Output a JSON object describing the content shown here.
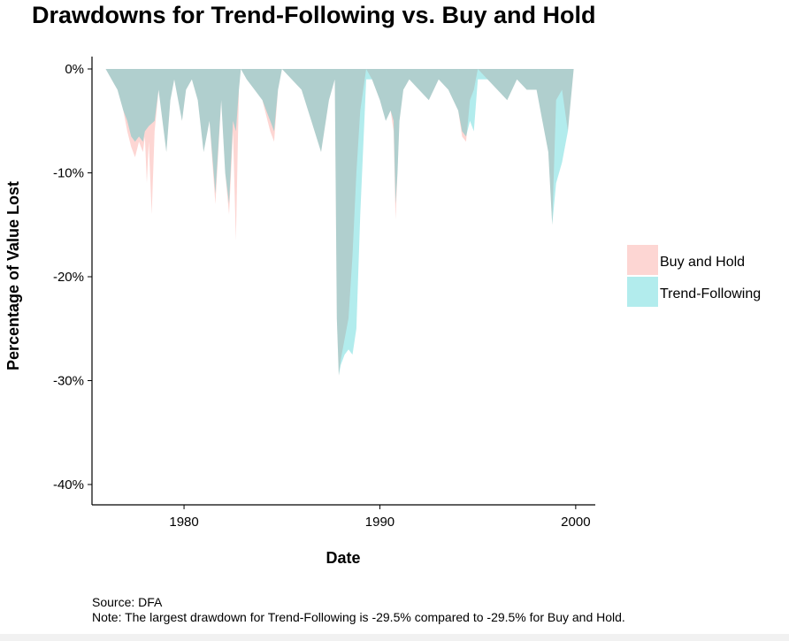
{
  "title": "Drawdowns for Trend-Following vs. Buy and Hold",
  "caption": {
    "source": "Source: DFA",
    "note": "Note: The largest drawdown for Trend-Following is -29.5% compared to -29.5% for Buy and Hold."
  },
  "chart_data": {
    "type": "area",
    "title": "Drawdowns for Trend-Following vs. Buy and Hold",
    "xlabel": "Date",
    "ylabel": "Percentage of Value Lost",
    "xlim": [
      1975.3,
      2001.0
    ],
    "ylim": [
      -42,
      1
    ],
    "x_ticks": [
      1980,
      1990,
      2000
    ],
    "x_tick_labels": [
      "1980",
      "1990",
      "2000"
    ],
    "y_ticks": [
      0,
      -10,
      -20,
      -30,
      -40
    ],
    "y_tick_labels": [
      "0%",
      "-10%",
      "-20%",
      "-30%",
      "-40%"
    ],
    "grid": false,
    "legend_position": "right",
    "colors": {
      "Buy and Hold": "#F8766D",
      "Trend-Following": "#00BFC4",
      "overlap": "#B3C9CA"
    },
    "series": [
      {
        "name": "Buy and Hold",
        "x": [
          1976.0,
          1976.3,
          1976.6,
          1976.9,
          1977.1,
          1977.3,
          1977.5,
          1977.7,
          1977.9,
          1978.0,
          1978.1,
          1978.2,
          1978.35,
          1978.5,
          1978.7,
          1978.9,
          1979.1,
          1979.3,
          1979.5,
          1979.7,
          1979.9,
          1980.1,
          1980.4,
          1980.7,
          1981.0,
          1981.3,
          1981.6,
          1981.9,
          1982.1,
          1982.3,
          1982.5,
          1982.65,
          1982.8,
          1982.9,
          1983.2,
          1983.6,
          1984.0,
          1984.4,
          1984.6,
          1984.8,
          1985.0,
          1985.5,
          1986.0,
          1986.5,
          1987.0,
          1987.4,
          1987.7,
          1987.8,
          1987.9,
          1988.0,
          1988.2,
          1988.4,
          1988.6,
          1988.8,
          1989.0,
          1989.3,
          1989.6,
          1990.0,
          1990.3,
          1990.55,
          1990.7,
          1990.8,
          1990.9,
          1991.0,
          1991.2,
          1991.5,
          1992.0,
          1992.5,
          1993.0,
          1993.5,
          1994.0,
          1994.2,
          1994.4,
          1994.6,
          1994.8,
          1995.0,
          1995.5,
          1996.0,
          1996.5,
          1997.0,
          1997.5,
          1998.0,
          1998.3,
          1998.6,
          1998.8,
          1999.0,
          1999.3,
          1999.6,
          1999.9
        ],
        "values": [
          0,
          -1,
          -2,
          -4,
          -6,
          -7.5,
          -8.5,
          -7,
          -8,
          -6.5,
          -11,
          -7,
          -14,
          -6,
          -2,
          -5,
          -8,
          -3,
          -1,
          -3,
          -5,
          -2,
          -1,
          -3,
          -8,
          -5,
          -13,
          -3,
          -10,
          -14,
          -6,
          -16.5,
          -2,
          0,
          -1,
          -2,
          -3,
          -6,
          -7,
          -2,
          0,
          -1,
          -2,
          -5,
          -8,
          -3,
          -1,
          -24,
          -29.5,
          -28,
          -26,
          -24,
          -18,
          -10,
          -4,
          0,
          -1,
          -3,
          -5,
          -4,
          -6,
          -14.5,
          -10,
          -5,
          -2,
          -1,
          -2,
          -3,
          -1,
          -2,
          -4,
          -6.5,
          -7,
          -3,
          -2,
          0,
          -1,
          -2,
          -3,
          -1,
          -2,
          -2,
          -5,
          -8,
          -15,
          -3,
          -2,
          -6,
          0
        ]
      },
      {
        "name": "Trend-Following",
        "x": [
          1976.0,
          1976.3,
          1976.6,
          1976.9,
          1977.1,
          1977.3,
          1977.5,
          1977.7,
          1977.9,
          1978.0,
          1978.2,
          1978.5,
          1978.7,
          1978.9,
          1979.1,
          1979.3,
          1979.5,
          1979.7,
          1979.9,
          1980.1,
          1980.4,
          1980.7,
          1981.0,
          1981.3,
          1981.6,
          1981.9,
          1982.1,
          1982.3,
          1982.5,
          1982.65,
          1982.8,
          1982.9,
          1983.2,
          1983.6,
          1984.0,
          1984.4,
          1984.6,
          1984.8,
          1985.0,
          1985.5,
          1986.0,
          1986.5,
          1987.0,
          1987.4,
          1987.7,
          1987.8,
          1987.9,
          1988.0,
          1988.2,
          1988.4,
          1988.6,
          1988.8,
          1989.0,
          1989.3,
          1989.6,
          1990.0,
          1990.3,
          1990.55,
          1990.7,
          1990.8,
          1990.9,
          1991.0,
          1991.2,
          1991.5,
          1992.0,
          1992.5,
          1993.0,
          1993.5,
          1994.0,
          1994.2,
          1994.4,
          1994.6,
          1994.8,
          1995.0,
          1995.5,
          1996.0,
          1996.5,
          1997.0,
          1997.5,
          1998.0,
          1998.3,
          1998.6,
          1998.8,
          1999.0,
          1999.3,
          1999.6,
          1999.9
        ],
        "values": [
          0,
          -1,
          -2,
          -4,
          -5,
          -6.5,
          -7,
          -6.5,
          -7,
          -6,
          -5.5,
          -5,
          -2,
          -5,
          -8,
          -3,
          -1,
          -3,
          -5,
          -2,
          -1,
          -3,
          -8,
          -5,
          -12,
          -3,
          -10,
          -13,
          -5,
          -6,
          -2,
          0,
          -1,
          -2,
          -3,
          -5,
          -6,
          -2,
          0,
          -1,
          -2,
          -5,
          -8,
          -3,
          -1,
          -24,
          -29.5,
          -28.5,
          -27.5,
          -27,
          -27.5,
          -25,
          -14,
          -1,
          -1,
          -3,
          -5,
          -4,
          -5,
          -13,
          -10,
          -5,
          -2,
          -1,
          -2,
          -3,
          -1,
          -2,
          -4,
          -6,
          -6.5,
          -5,
          -6,
          -1,
          -1,
          -2,
          -3,
          -1,
          -2,
          -2,
          -5,
          -8,
          -15,
          -11,
          -9,
          -6,
          0
        ]
      }
    ]
  }
}
